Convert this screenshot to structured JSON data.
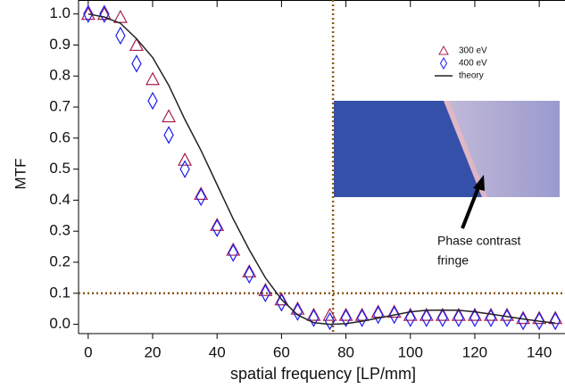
{
  "chart_data": {
    "type": "scatter",
    "xlabel": "spatial frequency [LP/mm]",
    "ylabel": "MTF",
    "xlim": [
      -3,
      148
    ],
    "ylim": [
      -0.03,
      1.045
    ],
    "xticks": [
      0,
      20,
      40,
      60,
      80,
      100,
      120,
      140
    ],
    "yticks": [
      {
        "value": 0,
        "label": "0.0"
      },
      {
        "value": 0.1,
        "label": "0.1"
      },
      {
        "value": 0.2,
        "label": "0.2"
      },
      {
        "value": 0.3,
        "label": "0.3"
      },
      {
        "value": 0.4,
        "label": "0.4"
      },
      {
        "value": 0.5,
        "label": "0.5"
      },
      {
        "value": 0.6,
        "label": "0.6"
      },
      {
        "value": 0.7,
        "label": "0.7"
      },
      {
        "value": 0.8,
        "label": "0.8"
      },
      {
        "value": 0.9,
        "label": "0.9"
      },
      {
        "value": 1,
        "label": "1.0"
      }
    ],
    "ref_x": 76,
    "ref_y": 0.1,
    "ref_color": "#8b5a1a",
    "series": [
      {
        "name": "300 eV",
        "marker": "triangle",
        "color": "#a8204e",
        "x": [
          0,
          5,
          10,
          15,
          20,
          25,
          30,
          35,
          40,
          45,
          50,
          55,
          60,
          65,
          70,
          75,
          80,
          85,
          90,
          95,
          100,
          105,
          110,
          115,
          120,
          125,
          130,
          135,
          140,
          145
        ],
        "values": [
          1.0,
          1.0,
          0.99,
          0.9,
          0.79,
          0.67,
          0.53,
          0.42,
          0.32,
          0.24,
          0.17,
          0.11,
          0.08,
          0.05,
          0.03,
          0.03,
          0.03,
          0.03,
          0.04,
          0.04,
          0.03,
          0.03,
          0.03,
          0.03,
          0.03,
          0.03,
          0.03,
          0.02,
          0.02,
          0.02
        ]
      },
      {
        "name": "400 eV",
        "marker": "diamond",
        "color": "#1c1cf0",
        "x": [
          0,
          5,
          10,
          15,
          20,
          25,
          30,
          35,
          40,
          45,
          50,
          55,
          60,
          65,
          70,
          75,
          80,
          85,
          90,
          95,
          100,
          105,
          110,
          115,
          120,
          125,
          130,
          135,
          140,
          145
        ],
        "values": [
          1.0,
          1.0,
          0.93,
          0.84,
          0.72,
          0.61,
          0.5,
          0.41,
          0.31,
          0.23,
          0.16,
          0.1,
          0.07,
          0.04,
          0.02,
          0.01,
          0.02,
          0.02,
          0.03,
          0.03,
          0.02,
          0.02,
          0.02,
          0.02,
          0.02,
          0.02,
          0.02,
          0.01,
          0.01,
          0.01
        ]
      },
      {
        "name": "theory",
        "marker": "line",
        "color": "#222222",
        "x": [
          0,
          5,
          10,
          15,
          20,
          25,
          30,
          35,
          40,
          45,
          50,
          55,
          60,
          65,
          70,
          75,
          80,
          85,
          90,
          95,
          100,
          105,
          110,
          115,
          120,
          125,
          130,
          135,
          140,
          145
        ],
        "values": [
          1.0,
          0.99,
          0.97,
          0.92,
          0.86,
          0.77,
          0.66,
          0.56,
          0.45,
          0.34,
          0.24,
          0.15,
          0.08,
          0.03,
          0.005,
          0,
          0.002,
          0.01,
          0.02,
          0.03,
          0.04,
          0.045,
          0.046,
          0.045,
          0.04,
          0.033,
          0.025,
          0.017,
          0.01,
          0.004
        ]
      }
    ],
    "annotation_lines": [
      "Phase contrast",
      "fringe"
    ]
  }
}
